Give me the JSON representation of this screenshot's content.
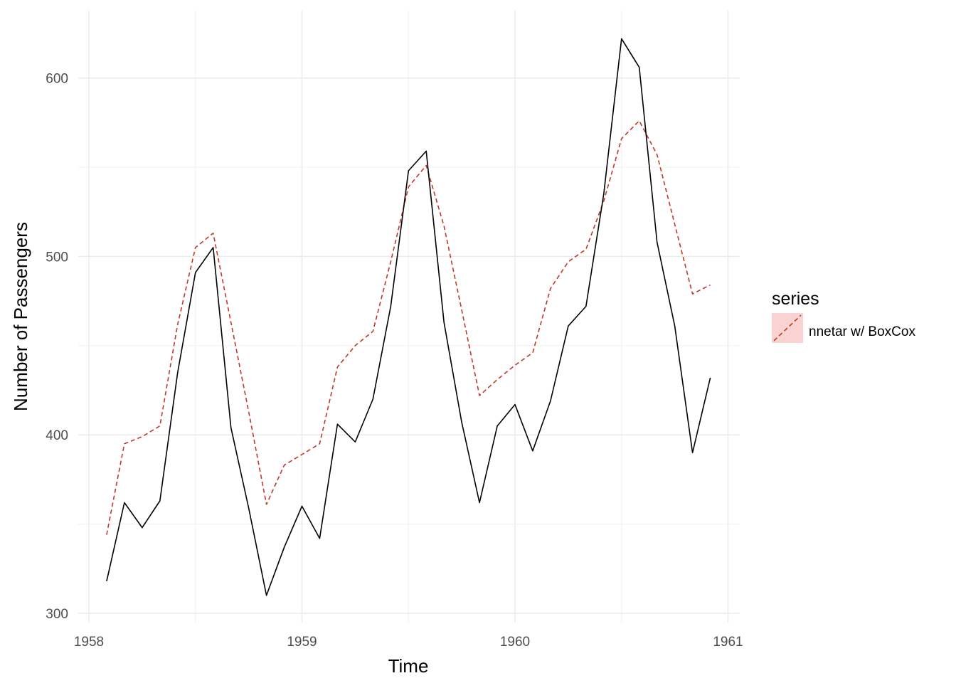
{
  "chart_data": {
    "type": "line",
    "title": "",
    "xlabel": "Time",
    "ylabel": "Number of Passengers",
    "xlim": [
      1958.0,
      1961.0
    ],
    "ylim": [
      300,
      620
    ],
    "x_ticks": [
      1958,
      1959,
      1960,
      1961
    ],
    "y_ticks": [
      300,
      400,
      500,
      600
    ],
    "x_tick_labels": [
      "1958",
      "1959",
      "1960",
      "1961"
    ],
    "y_tick_labels": [
      "300",
      "400",
      "500",
      "600"
    ],
    "grid": true,
    "legend_position": "right",
    "legend_title": "series",
    "x": [
      1958.0833,
      1958.1667,
      1958.25,
      1958.3333,
      1958.4167,
      1958.5,
      1958.5833,
      1958.6667,
      1958.75,
      1958.8333,
      1958.9167,
      1959.0,
      1959.0833,
      1959.1667,
      1959.25,
      1959.3333,
      1959.4167,
      1959.5,
      1959.5833,
      1959.6667,
      1959.75,
      1959.8333,
      1959.9167,
      1960.0,
      1960.0833,
      1960.1667,
      1960.25,
      1960.3333,
      1960.4167,
      1960.5,
      1960.5833,
      1960.6667,
      1960.75,
      1960.8333,
      1960.9167
    ],
    "series": [
      {
        "name": "",
        "color": "#000000",
        "dash": "solid",
        "values": [
          318,
          362,
          348,
          363,
          435,
          491,
          505,
          404,
          359,
          310,
          337,
          360,
          342,
          406,
          396,
          420,
          472,
          548,
          559,
          463,
          407,
          362,
          405,
          417,
          391,
          419,
          461,
          472,
          535,
          622,
          606,
          508,
          461,
          390,
          432
        ]
      },
      {
        "name": "nnetar w/ BoxCox",
        "color": "#c0392b",
        "dash": "dashed",
        "values": [
          344,
          395,
          399,
          405,
          462,
          505,
          513,
          463,
          413,
          361,
          383,
          389,
          395,
          438,
          450,
          458,
          497,
          539,
          551,
          517,
          470,
          422,
          431,
          439,
          446,
          482,
          497,
          504,
          531,
          566,
          576,
          557,
          518,
          479,
          484
        ]
      }
    ]
  }
}
